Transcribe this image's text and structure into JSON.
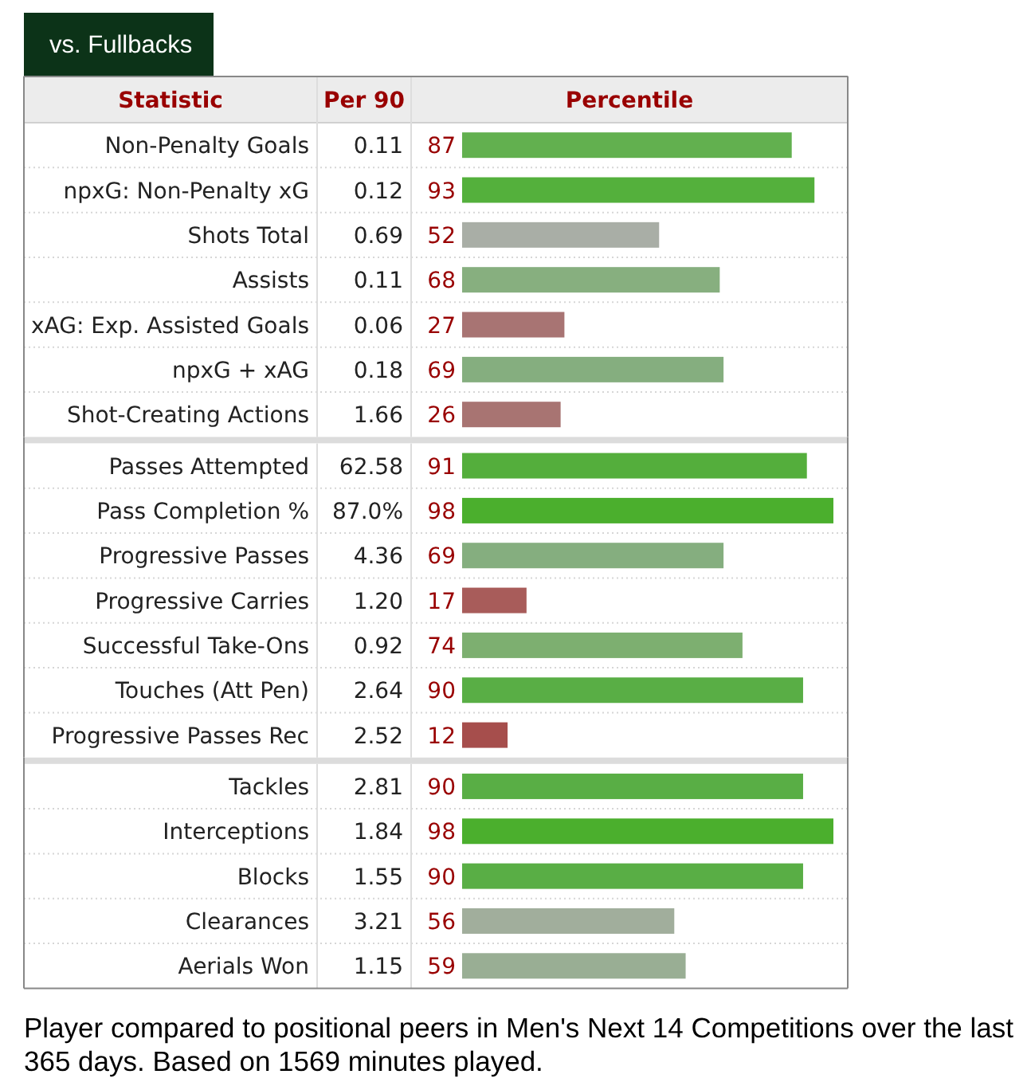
{
  "chart_data": [
    {
      "type": "bar",
      "orientation": "horizontal",
      "title": "vs. Fullbacks",
      "ylabel": "Statistic",
      "y2label": "Per 90",
      "xlabel": "Percentile",
      "categories": [
        "Non-Penalty Goals",
        "npxG: Non-Penalty xG",
        "Shots Total",
        "Assists",
        "xAG: Exp. Assisted Goals",
        "npxG + xAG",
        "Shot-Creating Actions"
      ],
      "y2_categories": [
        "0.11",
        "0.12",
        "0.69",
        "0.11",
        "0.06",
        "0.18",
        "1.66"
      ],
      "values": [
        87,
        93,
        52,
        68,
        27,
        69,
        26
      ],
      "colors": [
        "#62b04f",
        "#54b03c",
        "#a9aea6",
        "#87af7f",
        "#a87473",
        "#85ae7f",
        "#a87472"
      ],
      "data_labels": true,
      "tick_labels": "y"
    },
    {
      "type": "bar",
      "orientation": "horizontal",
      "categories": [
        "Passes Attempted",
        "Pass Completion %",
        "Progressive Passes",
        "Progressive Carries",
        "Successful Take-Ons",
        "Touches (Att Pen)",
        "Progressive Passes Rec"
      ],
      "y2_categories": [
        "62.58",
        "87.0%",
        "4.36",
        "1.20",
        "0.92",
        "2.64",
        "2.52"
      ],
      "values": [
        91,
        98,
        69,
        17,
        74,
        90,
        12
      ],
      "colors": [
        "#54ae3c",
        "#4baf2d",
        "#85ae7f",
        "#a85c5a",
        "#7daf70",
        "#59ae45",
        "#a64e4c"
      ],
      "data_labels": true,
      "tick_labels": "y"
    },
    {
      "type": "bar",
      "orientation": "horizontal",
      "categories": [
        "Tackles",
        "Interceptions",
        "Blocks",
        "Clearances",
        "Aerials Won"
      ],
      "y2_categories": [
        "2.81",
        "1.84",
        "1.55",
        "3.21",
        "1.15"
      ],
      "values": [
        90,
        98,
        90,
        56,
        59
      ],
      "colors": [
        "#59ae45",
        "#4baf2d",
        "#59ae45",
        "#a1ae9c",
        "#99ae94"
      ],
      "data_labels": true,
      "tick_labels": "y",
      "annotations": [
        "Player compared to positional peers in Men's Next 14 Competitions over the last 365 days. Based on 1569 minutes played."
      ]
    }
  ]
}
